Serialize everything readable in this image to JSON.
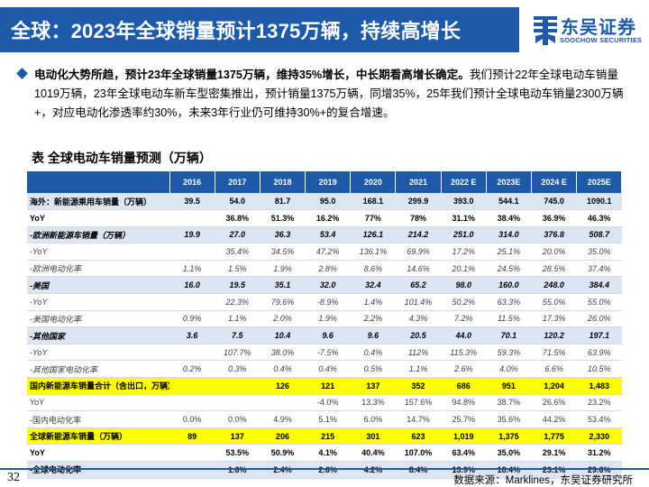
{
  "header": {
    "title": "全球：2023年全球销量预计1375万辆，持续高增长",
    "logo_cn": "东吴证券",
    "logo_en": "SOOCHOW SECURITIES"
  },
  "bullet": {
    "bold": "电动化大势所趋，预计23年全球销量1375万辆，维持35%增长，中长期看高增长确定。",
    "text": "我们预计22年全球电动车销量1019万辆，23年全球电动车新车型密集推出，预计销量1375万辆，同增35%，25年我们预计全球电动车销量2300万辆+，对应电动化渗透率约30%，未来3年行业仍可维持30%+的复合增速。"
  },
  "table": {
    "title": "表  全球电动车销量预测（万辆）",
    "columns": [
      "",
      "2016",
      "2017",
      "2018",
      "2019",
      "2020",
      "2021",
      "2022 E",
      "2023E",
      "2024 E",
      "2025E"
    ],
    "rows": [
      {
        "style": "blue bold",
        "cells": [
          "海外：新能源乘用车销量（万辆）",
          "39.5",
          "54.0",
          "81.7",
          "95.0",
          "168.1",
          "299.9",
          "393.0",
          "544.1",
          "745.0",
          "1090.1"
        ]
      },
      {
        "style": "bold",
        "cells": [
          "YoY",
          "",
          "36.8%",
          "51.3%",
          "16.2%",
          "77%",
          "78%",
          "31.1%",
          "38.4%",
          "36.9%",
          "46.3%"
        ]
      },
      {
        "style": "blue bold italic",
        "cells": [
          "-欧洲新能源车销量（万辆）",
          "19.9",
          "27.0",
          "36.3",
          "53.4",
          "126.1",
          "214.2",
          "251.0",
          "314.0",
          "376.8",
          "508.7"
        ]
      },
      {
        "style": "italic sub",
        "cells": [
          "-YoY",
          "",
          "35.4%",
          "34.5%",
          "47.2%",
          "136.1%",
          "69.9%",
          "17.2%",
          "25.1%",
          "20.0%",
          "35.0%"
        ]
      },
      {
        "style": "italic sub",
        "cells": [
          "-欧洲电动化率",
          "1.1%",
          "1.5%",
          "1.9%",
          "2.8%",
          "8.6%",
          "14.6%",
          "20.1%",
          "24.5%",
          "28.5%",
          "37.4%"
        ]
      },
      {
        "style": "blue bold italic",
        "cells": [
          "-美国",
          "16.0",
          "19.5",
          "35.1",
          "32.0",
          "32.4",
          "65.2",
          "98.0",
          "160.0",
          "248.0",
          "384.4"
        ]
      },
      {
        "style": "italic sub",
        "cells": [
          "-YoY",
          "",
          "22.3%",
          "79.6%",
          "-8.9%",
          "1.4%",
          "101.4%",
          "50.2%",
          "63.3%",
          "55.0%",
          "55.0%"
        ]
      },
      {
        "style": "italic sub",
        "cells": [
          "-美国电动化率",
          "0.9%",
          "1.1%",
          "2.0%",
          "1.9%",
          "2.2%",
          "4.3%",
          "7.2%",
          "11.5%",
          "17.3%",
          "26.0%"
        ]
      },
      {
        "style": "blue bold italic",
        "cells": [
          "-其他国家",
          "3.6",
          "7.5",
          "10.4",
          "9.6",
          "9.6",
          "20.5",
          "44.0",
          "70.1",
          "120.2",
          "197.1"
        ]
      },
      {
        "style": "italic sub",
        "cells": [
          "-YoY",
          "",
          "107.7%",
          "38.0%",
          "-7.5%",
          "0.4%",
          "112%",
          "115.3%",
          "59.3%",
          "71.5%",
          "63.9%"
        ]
      },
      {
        "style": "italic sub",
        "cells": [
          "-其他国家电动化率",
          "0.2%",
          "0.3%",
          "0.4%",
          "0.4%",
          "0.5%",
          "1.1%",
          "2.6%",
          "4.0%",
          "6.6%",
          "10.5%"
        ]
      },
      {
        "style": "yellow bold",
        "cells": [
          "国内新能源车销量合计（含出口，万辆）",
          "",
          "",
          "126",
          "121",
          "137",
          "352",
          "686",
          "951",
          "1,204",
          "1,483"
        ]
      },
      {
        "style": "sub",
        "cells": [
          "YoY",
          "",
          "",
          "",
          "-4.0%",
          "13.3%",
          "157.6%",
          "94.8%",
          "38.7%",
          "26.6%",
          "23.2%"
        ]
      },
      {
        "style": "sub",
        "cells": [
          "-国内电动化率",
          "0.0%",
          "0.0%",
          "4.9%",
          "5.1%",
          "6.0%",
          "14.7%",
          "25.7%",
          "35.6%",
          "44.2%",
          "53.4%"
        ]
      },
      {
        "style": "yellow bold",
        "cells": [
          "全球新能源车销量（万辆）",
          "89",
          "137",
          "206",
          "215",
          "301",
          "623",
          "1,019",
          "1,375",
          "1,775",
          "2,330"
        ]
      },
      {
        "style": "bold",
        "cells": [
          "YoY",
          "",
          "53.5%",
          "50.9%",
          "4.1%",
          "40.4%",
          "107.0%",
          "63.4%",
          "35.0%",
          "29.1%",
          "31.2%"
        ]
      },
      {
        "style": "blue bold",
        "cells": [
          "-全球电动化率",
          "",
          "1.6%",
          "2.4%",
          "2.6%",
          "4.2%",
          "8.4%",
          "13.9%",
          "18.4%",
          "23.1%",
          "29.6%"
        ]
      }
    ]
  },
  "footer": {
    "page": "32",
    "source": "数据来源：Marklines，东吴证券研究所"
  },
  "colors": {
    "brand_blue": "#1f5aa8",
    "row_highlight_blue": "#dce6f2",
    "row_highlight_yellow": "#ffff00"
  }
}
